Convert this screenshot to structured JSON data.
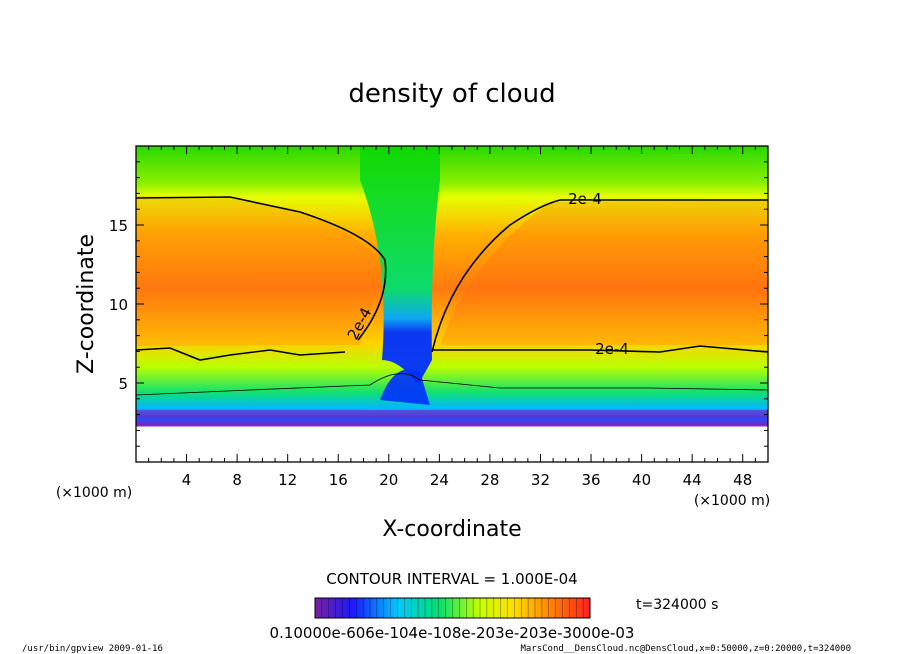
{
  "chart_data": {
    "type": "heatmap",
    "title": "density of cloud",
    "xlabel": "X-coordinate",
    "ylabel": "Z-coordinate",
    "x_unit": "(×1000 m)",
    "y_unit": "(×1000 m)",
    "xlim": [
      0,
      50
    ],
    "ylim": [
      0,
      20
    ],
    "x_ticks": [
      4,
      8,
      12,
      16,
      20,
      24,
      28,
      32,
      36,
      40,
      44,
      48
    ],
    "y_ticks": [
      5,
      10,
      15
    ],
    "contour_interval_text": "CONTOUR INTERVAL = 1.000E-04",
    "contour_labels": [
      "2e-4",
      "2e-4",
      "2e-4"
    ],
    "time_text": "t=324000 s",
    "colorbar": {
      "min": 0.0001,
      "max": 0.0003,
      "tick_text": "0.10000e-606e-104e-108e-203e-203e-3000e-03",
      "colors": [
        "#7a1fa2",
        "#1a1aff",
        "#00c8ff",
        "#00e070",
        "#c8ff00",
        "#ffe000",
        "#ff8000",
        "#ff2020"
      ]
    },
    "footer_left": "/usr/bin/gpview   2009-01-16",
    "footer_right": "MarsCond__DensCloud.nc@DensCloud,x=0:50000,z=0:20000,t=324000"
  }
}
